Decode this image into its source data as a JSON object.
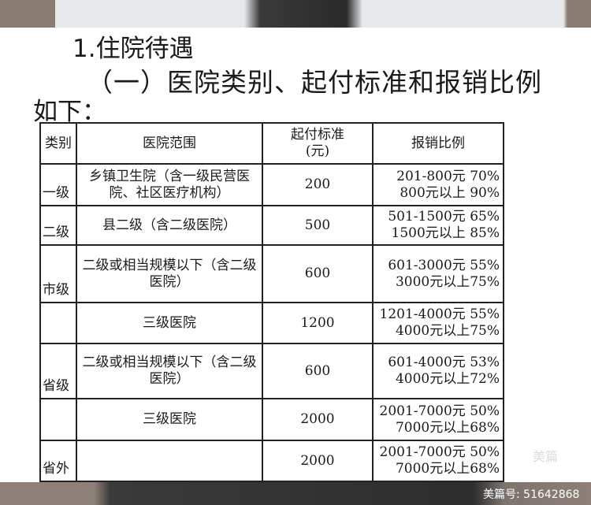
{
  "heading": "1.住院待遇",
  "subheading": "（一）医院类别、起付标准和报销比例",
  "intro": "如下：",
  "table": {
    "headers": [
      "类别",
      "医院范围",
      "起付标准\n(元)",
      "报销比例"
    ],
    "rows": [
      {
        "category": "一级",
        "scope": "乡镇卫生院（含一级民营医院、社区医疗机构）",
        "deductible": "200",
        "rate1": "201-800元 70%",
        "rate2": "800元以上 90%"
      },
      {
        "category": "二级",
        "scope": "县二级（含二级医院）",
        "deductible": "500",
        "rate1": "501-1500元 65%",
        "rate2": "1500元以上 85%"
      },
      {
        "category": "市级",
        "scope": "二级或相当规模以下（含二级医院）",
        "deductible": "600",
        "rate1": "601-3000元 55%",
        "rate2": "3000元以上75%"
      },
      {
        "category": "",
        "scope": "三级医院",
        "deductible": "1200",
        "rate1": "1201-4000元 55%",
        "rate2": "4000元以上75%"
      },
      {
        "category": "省级",
        "scope": "二级或相当规模以下（含二级医院）",
        "deductible": "600",
        "rate1": "601-4000元 53%",
        "rate2": "4000元以上72%"
      },
      {
        "category": "",
        "scope": "三级医院",
        "deductible": "2000",
        "rate1": "2001-7000元 50%",
        "rate2": "7000元以上68%"
      },
      {
        "category": "省外",
        "scope": "",
        "deductible": "2000",
        "rate1": "2001-7000元 50%",
        "rate2": "7000元以上68%"
      }
    ]
  },
  "watermark": "美篇",
  "footer_id": "美篇号: 51642868"
}
